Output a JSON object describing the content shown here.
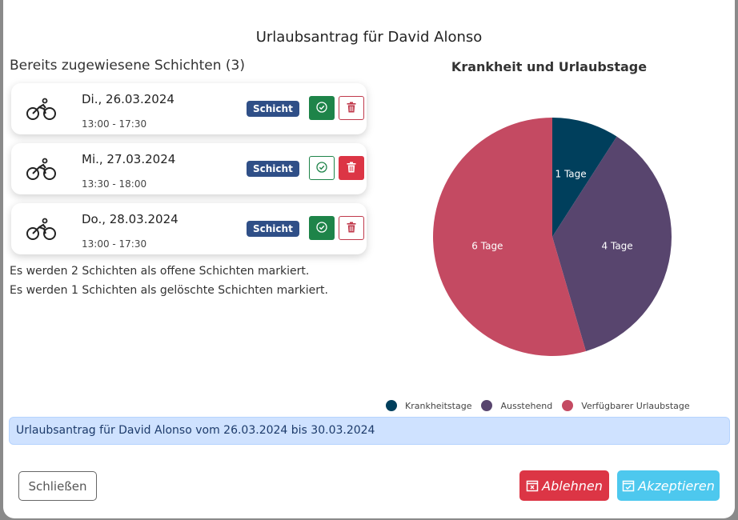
{
  "modal": {
    "title": "Urlaubsantrag für David Alonso"
  },
  "shifts": {
    "heading": "Bereits zugewiesene Schichten (3)",
    "items": [
      {
        "date": "Di., 26.03.2024",
        "time": "13:00 - 17:30",
        "badge": "Schicht",
        "accepted": true
      },
      {
        "date": "Mi., 27.03.2024",
        "time": "13:30 - 18:00",
        "badge": "Schicht",
        "accepted": false
      },
      {
        "date": "Do., 28.03.2024",
        "time": "13:00 - 17:30",
        "badge": "Schicht",
        "accepted": true
      }
    ]
  },
  "info": [
    "Es werden 2 Schichten als offene Schichten markiert.",
    "Es werden 1 Schichten als gelöschte Schichten markiert."
  ],
  "chart_data": {
    "type": "pie",
    "title": "Krankheit und Urlaubstage",
    "categories": [
      "Krankheitstage",
      "Ausstehend",
      "Verfügbarer Urlaubstage"
    ],
    "values": [
      1,
      4,
      6
    ],
    "labels": [
      "1 Tage",
      "4 Tage",
      "6 Tage"
    ],
    "colors": [
      "#003f5c",
      "#58456e",
      "#c44a62"
    ],
    "legend": "bottom"
  },
  "alert": "Urlaubsantrag für David Alonso vom 26.03.2024 bis 30.03.2024",
  "footer": {
    "close": "Schließen",
    "reject": "Ablehnen",
    "accept": "Akzeptieren"
  }
}
